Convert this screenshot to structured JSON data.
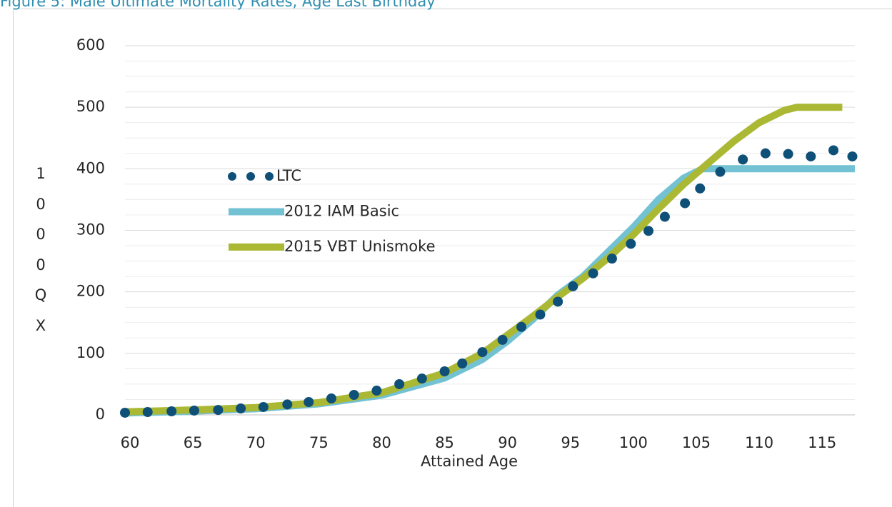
{
  "chart_data": {
    "type": "line",
    "title": "Figure 5: Male Ultimate Mortality Rates, Age Last Birthday",
    "xlabel": "Attained Age",
    "ylabel": "1000QX",
    "xlim": [
      59.6,
      117.6
    ],
    "xticks": [
      60,
      65,
      70,
      75,
      80,
      85,
      90,
      95,
      100,
      105,
      110,
      115
    ],
    "ylim": [
      0,
      600
    ],
    "yticks": [
      0,
      100,
      200,
      300,
      400,
      500,
      600
    ],
    "y_minor_ticks": [
      25,
      50,
      75,
      125,
      150,
      175,
      225,
      250,
      275,
      325,
      350,
      375,
      425,
      450,
      475,
      525,
      550,
      575
    ],
    "grid": true,
    "legend": "left",
    "series": [
      {
        "name": "LTC",
        "style": "dots",
        "color": "#0f5078",
        "x": [
          59.6,
          61.4,
          63.3,
          65.1,
          67,
          68.8,
          70.6,
          72.5,
          74.2,
          76,
          77.8,
          79.6,
          81.4,
          83.2,
          85,
          86.4,
          88,
          89.6,
          91.1,
          92.6,
          94,
          95.2,
          96.8,
          98.3,
          99.8,
          101.2,
          102.5,
          104.1,
          105.3,
          106.9,
          108.7,
          110.5,
          112.3,
          114.1,
          115.9,
          117.4
        ],
        "values": [
          3.5,
          4.6,
          5.8,
          7,
          8,
          10.4,
          12.8,
          17,
          20.9,
          26.7,
          32.5,
          39.4,
          49.9,
          59,
          70.8,
          83.5,
          102,
          122,
          143,
          163,
          184,
          209,
          230,
          254,
          278,
          299,
          322,
          344,
          368,
          395,
          415,
          425,
          424,
          420,
          430,
          420
        ]
      },
      {
        "name": "2012 IAM Basic",
        "style": "line",
        "color": "#72c2d4",
        "x": [
          59.6,
          65,
          70,
          75,
          80,
          85,
          88,
          90,
          92,
          94,
          95,
          96,
          98,
          100,
          102,
          104,
          105.5,
          117.6
        ],
        "values": [
          3,
          6,
          10,
          18,
          32,
          60,
          90,
          120,
          155,
          195,
          210,
          225,
          265,
          305,
          350,
          385,
          400,
          400
        ]
      },
      {
        "name": "2015 VBT Unismoke",
        "style": "line",
        "color": "#aab834",
        "x": [
          59.6,
          65,
          70,
          75,
          80,
          85,
          88,
          90,
          92,
          94,
          96,
          98,
          100,
          102,
          104,
          106,
          108,
          110,
          112,
          113,
          116.6
        ],
        "values": [
          5,
          8,
          12,
          20,
          36,
          68,
          100,
          130,
          160,
          192,
          222,
          255,
          293,
          335,
          375,
          410,
          445,
          475,
          495,
          500,
          500
        ]
      }
    ]
  }
}
